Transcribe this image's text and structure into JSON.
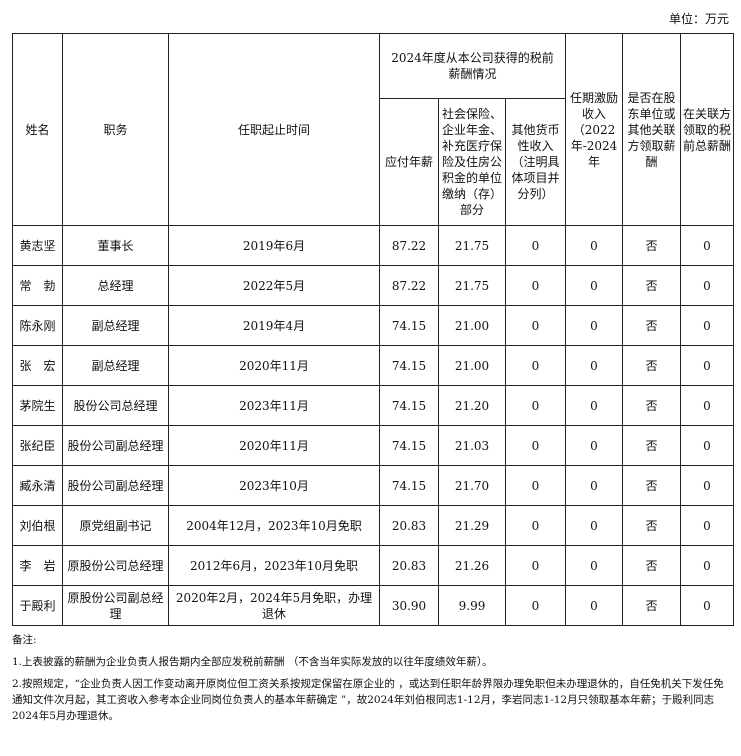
{
  "unit_label": "单位：万元",
  "headers": {
    "name": "姓名",
    "position": "职务",
    "term": "任职起止时间",
    "group": "2024年度从本公司获得的税前薪酬情况",
    "annual": "应付年薪",
    "social": "社会保险、企业年金、补充医疗保险及住房公积金的单位缴纳（存）部分",
    "other": "其他货币性收入（注明具体项目并分列）",
    "incentive": "任期激励收入（2022年-2024年",
    "shareholder": "是否在股东单位或其他关联方领取薪酬",
    "related": "在关联方领取的税前总薪酬"
  },
  "rows": [
    {
      "name": "黄志坚",
      "position": "董事长",
      "term": "2019年6月",
      "annual": "87.22",
      "social": "21.75",
      "other": "0",
      "incentive": "0",
      "shareholder": "否",
      "related": "0"
    },
    {
      "name": "常　勃",
      "position": "总经理",
      "term": "2022年5月",
      "annual": "87.22",
      "social": "21.75",
      "other": "0",
      "incentive": "0",
      "shareholder": "否",
      "related": "0"
    },
    {
      "name": "陈永刚",
      "position": "副总经理",
      "term": "2019年4月",
      "annual": "74.15",
      "social": "21.00",
      "other": "0",
      "incentive": "0",
      "shareholder": "否",
      "related": "0"
    },
    {
      "name": "张　宏",
      "position": "副总经理",
      "term": "2020年11月",
      "annual": "74.15",
      "social": "21.00",
      "other": "0",
      "incentive": "0",
      "shareholder": "否",
      "related": "0"
    },
    {
      "name": "茅院生",
      "position": "股份公司总经理",
      "term": "2023年11月",
      "annual": "74.15",
      "social": "21.20",
      "other": "0",
      "incentive": "0",
      "shareholder": "否",
      "related": "0"
    },
    {
      "name": "张纪臣",
      "position": "股份公司副总经理",
      "term": "2020年11月",
      "annual": "74.15",
      "social": "21.03",
      "other": "0",
      "incentive": "0",
      "shareholder": "否",
      "related": "0"
    },
    {
      "name": "臧永清",
      "position": "股份公司副总经理",
      "term": "2023年10月",
      "annual": "74.15",
      "social": "21.70",
      "other": "0",
      "incentive": "0",
      "shareholder": "否",
      "related": "0"
    },
    {
      "name": "刘伯根",
      "position": "原党组副书记",
      "term": "2004年12月，2023年10月免职",
      "annual": "20.83",
      "social": "21.29",
      "other": "0",
      "incentive": "0",
      "shareholder": "否",
      "related": "0"
    },
    {
      "name": "李　岩",
      "position": "原股份公司总经理",
      "term": "2012年6月，2023年10月免职",
      "annual": "20.83",
      "social": "21.26",
      "other": "0",
      "incentive": "0",
      "shareholder": "否",
      "related": "0"
    },
    {
      "name": "于殿利",
      "position": "原股份公司副总经理",
      "term": "2020年2月，2024年5月免职，办理退休",
      "annual": "30.90",
      "social": "9.99",
      "other": "0",
      "incentive": "0",
      "shareholder": "否",
      "related": "0"
    }
  ],
  "notes": {
    "title": "备注:",
    "items": [
      "1.上表披露的薪酬为企业负责人报告期内全部应发税前薪酬 （不含当年实际发放的以往年度绩效年薪）。",
      "2.按照规定，“企业负责人因工作变动离开原岗位但工资关系按规定保留在原企业的 ，或达到任职年龄界限办理免职但未办理退休的，自任免机关下发任免通知文件次月起，其工资收入参考本企业同岗位负责人的基本年薪确定 ”，故2024年刘伯根同志1-12月，李岩同志1-12月只领取基本年薪；于殿利同志2024年5月办理退休。"
    ]
  }
}
